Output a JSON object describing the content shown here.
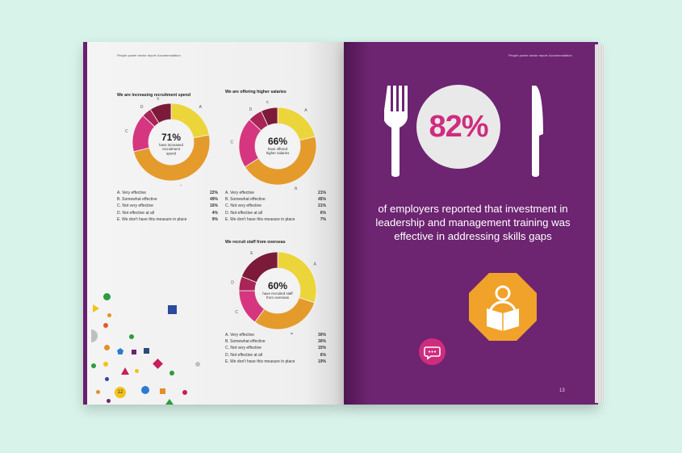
{
  "left_page": {
    "header": "People power sector report: Accommodation",
    "page_number": "12"
  },
  "right_page": {
    "header": "People power sector report: Accommodation",
    "page_number": "13",
    "big_stat": "82%",
    "statement": "of employers reported that investment in leadership and management training was effective in addressing skills gaps",
    "icons": [
      "fork-icon",
      "knife-icon",
      "reading-person-icon",
      "chat-bubble-icon"
    ]
  },
  "colors": {
    "A": "#ecd53b",
    "B": "#e49b2c",
    "C": "#d5367f",
    "D": "#a92457",
    "E": "#7c1a3a",
    "purple": "#6d2471",
    "pink": "#cf2c7e",
    "octagon": "#f0a22a"
  },
  "chart_data": [
    {
      "type": "pie",
      "title": "We are increasing recruitment spend",
      "center_value": "71%",
      "center_text": [
        "have increased",
        "recruitment",
        "spend"
      ],
      "categories": [
        "A. Very effective",
        "B. Somewhat effective",
        "C. Not very effective",
        "D. Not effective at all",
        "E. We don't have this measure in place"
      ],
      "letters": [
        "A",
        "B",
        "C",
        "D",
        "E"
      ],
      "values": [
        22,
        49,
        16,
        4,
        9
      ],
      "labels": [
        "22%",
        "49%",
        "16%",
        "4%",
        "9%"
      ]
    },
    {
      "type": "pie",
      "title": "We are offering higher salaries",
      "center_value": "66%",
      "center_text": [
        "have offered",
        "higher salaries"
      ],
      "categories": [
        "A. Very effective",
        "B. Somewhat effective",
        "C. Not very effective",
        "D. Not effective at all",
        "E. We don't have this measure in place"
      ],
      "letters": [
        "A",
        "B",
        "C",
        "D",
        "E"
      ],
      "values": [
        21,
        45,
        21,
        6,
        7
      ],
      "labels": [
        "21%",
        "45%",
        "21%",
        "6%",
        "7%"
      ]
    },
    {
      "type": "pie",
      "title": "We recruit staff from overseas",
      "center_value": "60%",
      "center_text": [
        "have recruited staff",
        "from overseas"
      ],
      "categories": [
        "A. Very effective",
        "B. Somewhat effective",
        "C. Not very effective",
        "D. Not effective at all",
        "E. We don't have this measure in place"
      ],
      "letters": [
        "A",
        "B",
        "C",
        "D",
        "E"
      ],
      "values": [
        30,
        30,
        15,
        6,
        19
      ],
      "labels": [
        "30%",
        "30%",
        "15%",
        "6%",
        "19%"
      ]
    }
  ]
}
